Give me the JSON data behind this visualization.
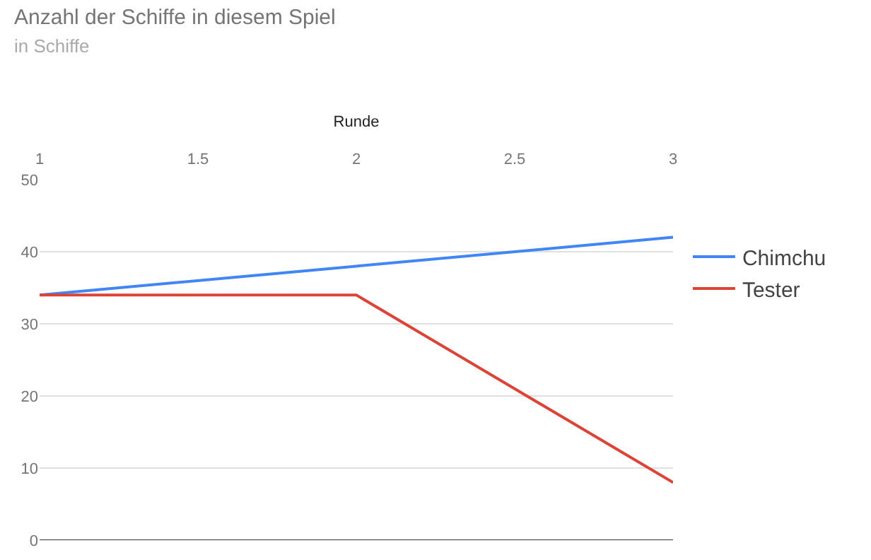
{
  "chart_data": {
    "type": "line",
    "title": "Anzahl der Schiffe in diesem Spiel",
    "subtitle": "in Schiffe",
    "xlabel": "Runde",
    "x": [
      1,
      2,
      3
    ],
    "series": [
      {
        "name": "Chimchu",
        "color": "#4285f4",
        "values": [
          34,
          38,
          42
        ]
      },
      {
        "name": "Tester",
        "color": "#db4437",
        "values": [
          34,
          34,
          8
        ]
      }
    ],
    "xlim": [
      1,
      3
    ],
    "xticks": [
      1,
      1.5,
      2,
      2.5,
      3
    ],
    "ylim": [
      0,
      50
    ],
    "yticks": [
      0,
      10,
      20,
      30,
      40,
      50
    ],
    "grid": "y",
    "legend": "right",
    "marker": "none",
    "line_style": "solid"
  }
}
